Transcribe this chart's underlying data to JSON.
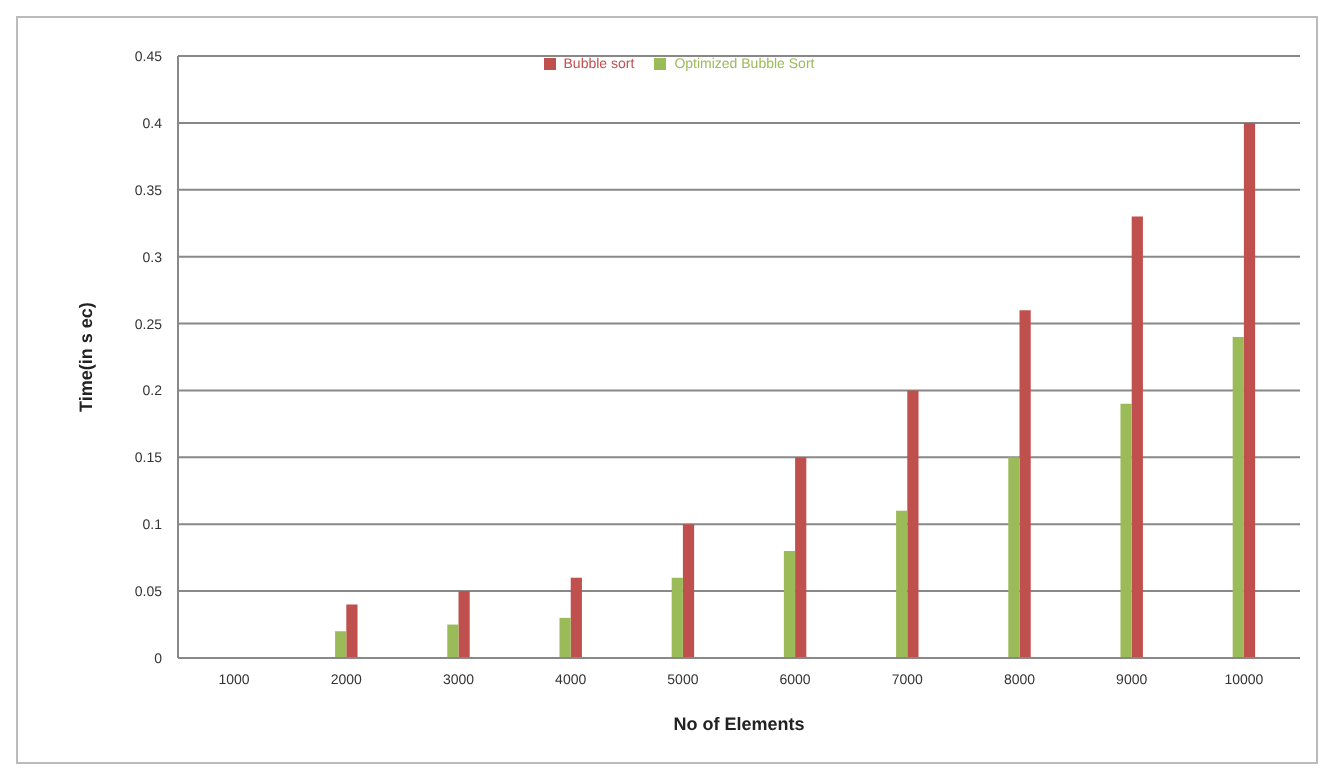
{
  "chart_data": {
    "type": "bar",
    "xlabel": "No of Elements",
    "ylabel": "Time(in s ec)",
    "categories": [
      "1000",
      "2000",
      "3000",
      "4000",
      "5000",
      "6000",
      "7000",
      "8000",
      "9000",
      "10000"
    ],
    "series": [
      {
        "name": "Bubble sort",
        "color": "#c0504d",
        "values": [
          0,
          0.04,
          0.05,
          0.06,
          0.1,
          0.15,
          0.2,
          0.26,
          0.33,
          0.4
        ]
      },
      {
        "name": "Optimized Bubble Sort",
        "color": "#9bbb59",
        "values": [
          0,
          0.02,
          0.025,
          0.03,
          0.06,
          0.08,
          0.11,
          0.15,
          0.19,
          0.24
        ]
      }
    ],
    "ylim": [
      0,
      0.45
    ],
    "yticks": [
      0,
      0.05,
      0.1,
      0.15,
      0.2,
      0.25,
      0.3,
      0.35,
      0.4,
      0.45
    ],
    "grid": "y",
    "legend": "top"
  }
}
